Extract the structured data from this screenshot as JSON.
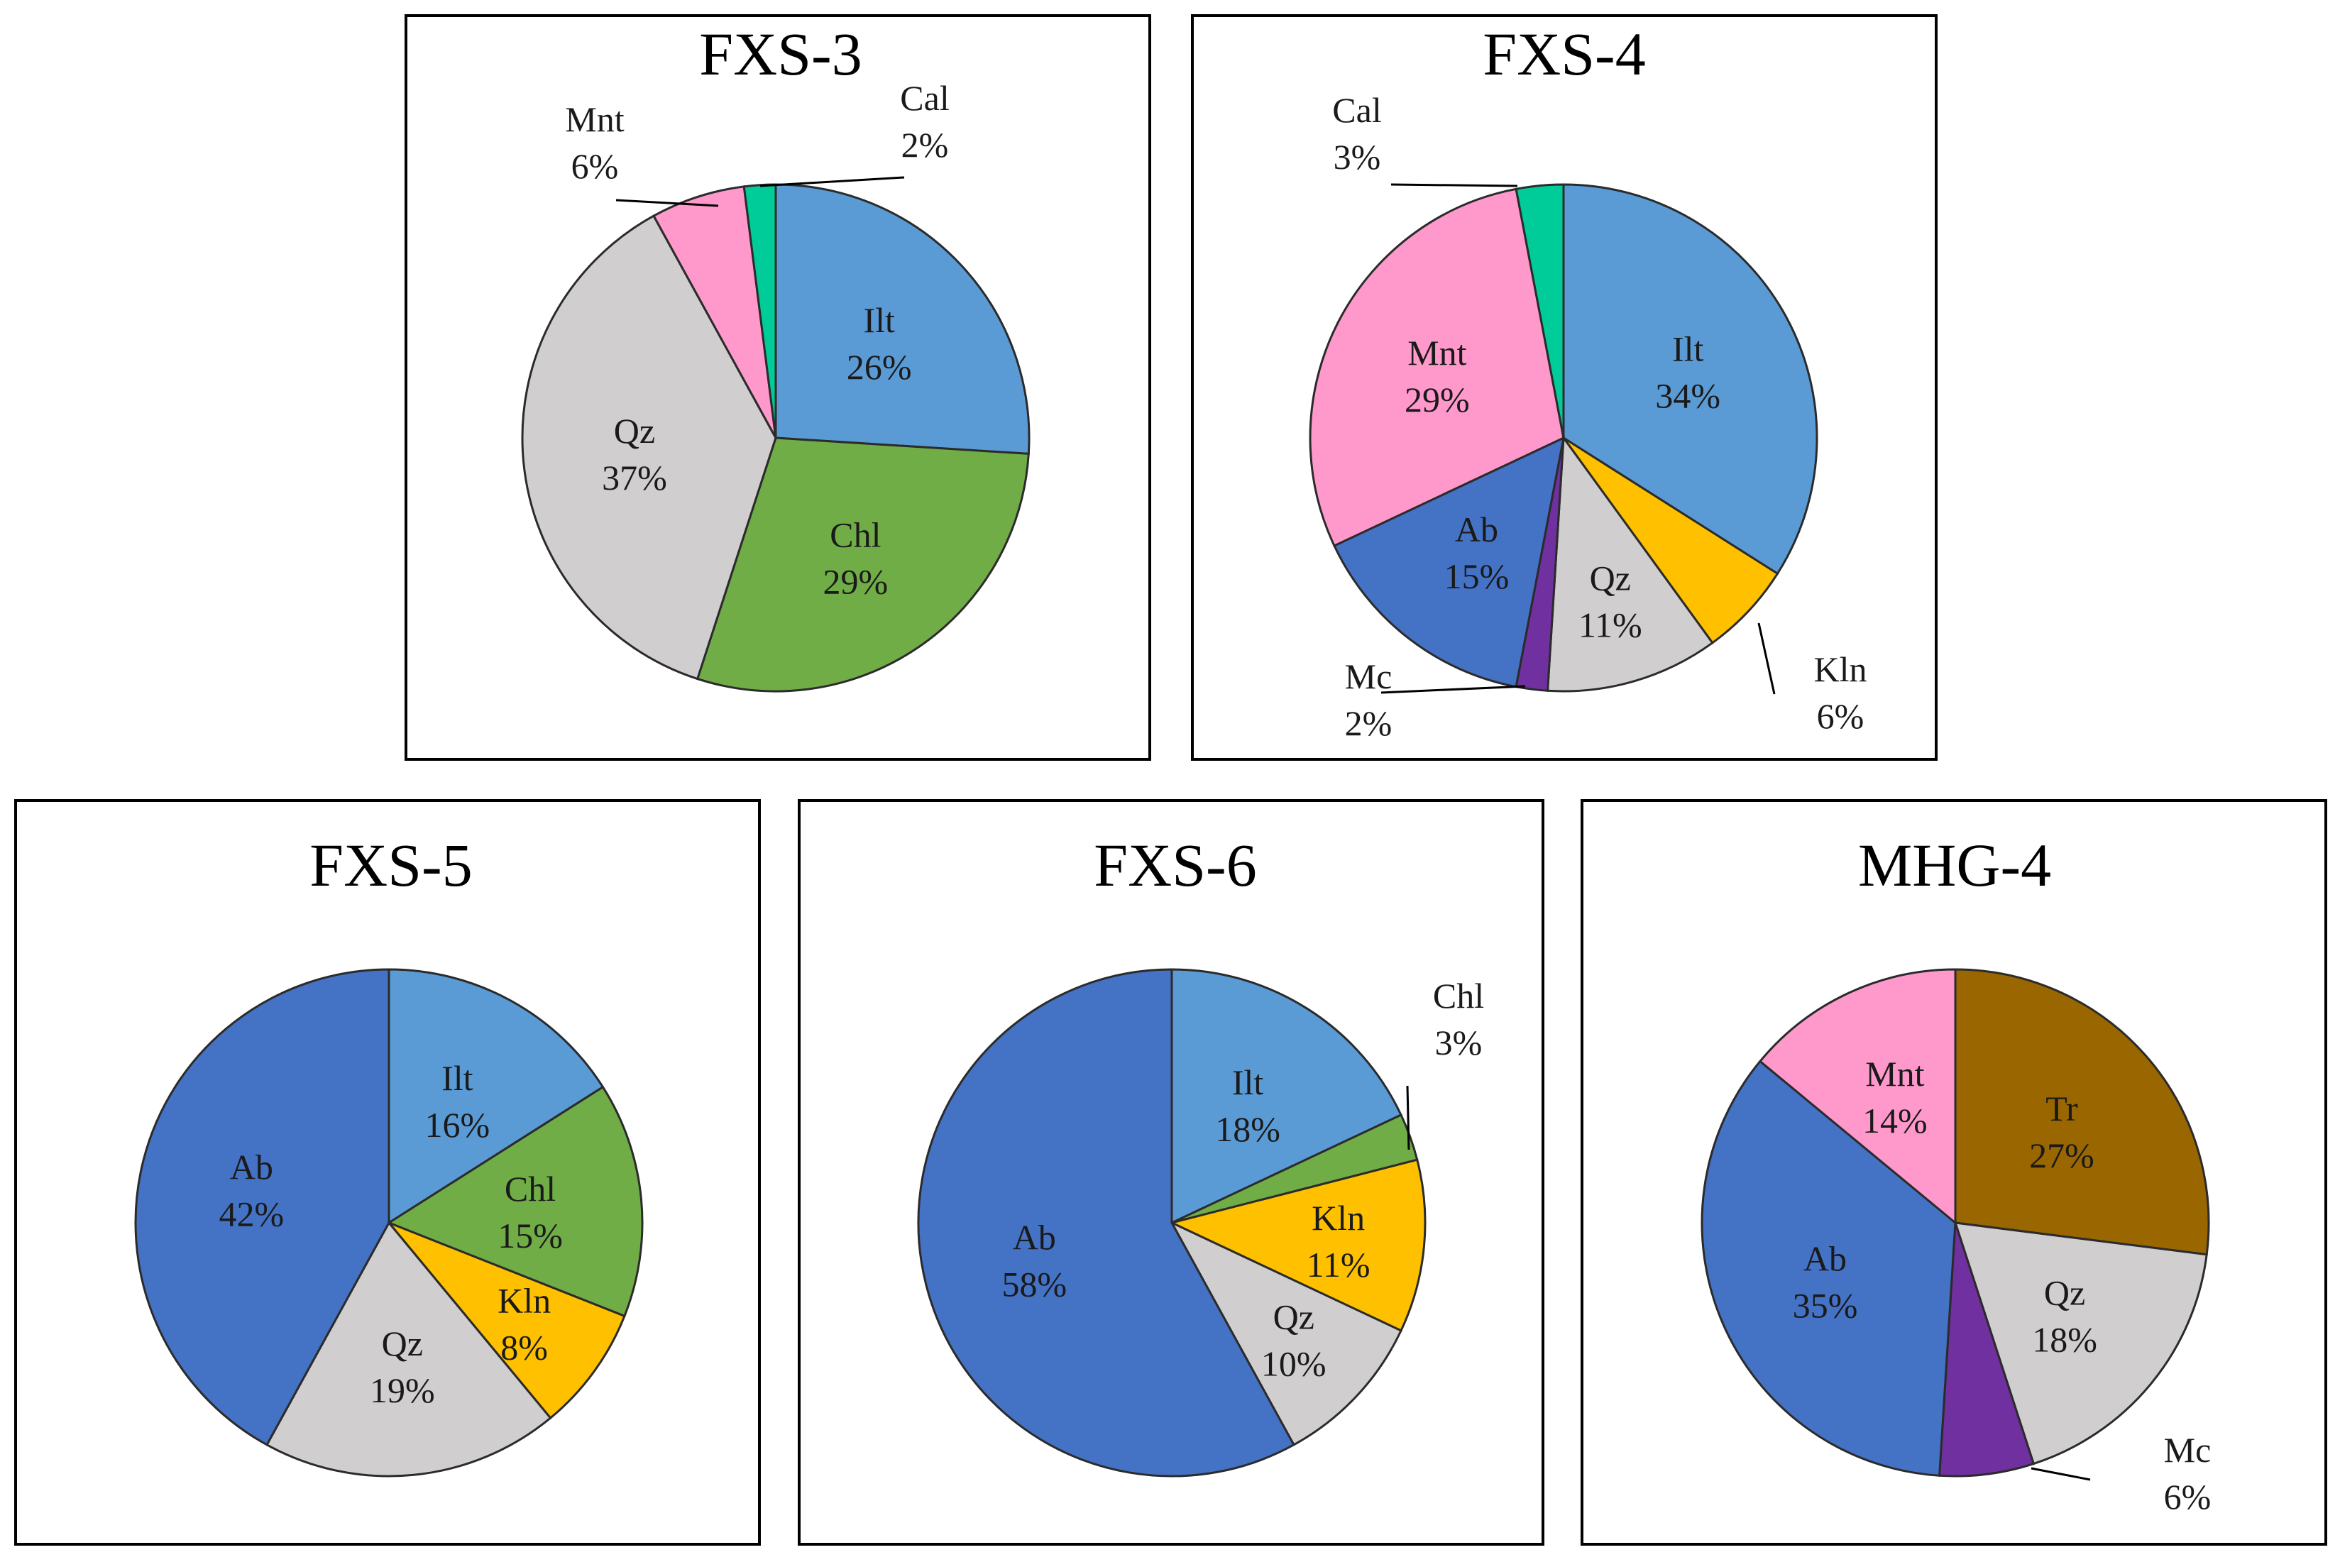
{
  "figure": {
    "panel_count": 5
  },
  "colors": {
    "Ilt": "#5b9bd5",
    "Chl": "#70ad47",
    "Qz": "#d0cece",
    "Mnt": "#ff99cc",
    "Cal": "#00cc99",
    "Kln": "#ffc000",
    "Mc": "#7030a0",
    "Ab": "#4472c4",
    "Tr": "#996600"
  },
  "chart_data": [
    {
      "type": "pie",
      "title": "FXS-3",
      "slices": [
        {
          "label": "Ilt",
          "value": 26,
          "display": "26%"
        },
        {
          "label": "Chl",
          "value": 29,
          "display": "29%"
        },
        {
          "label": "Qz",
          "value": 37,
          "display": "37%"
        },
        {
          "label": "Mnt",
          "value": 6,
          "display": "6%"
        },
        {
          "label": "Cal",
          "value": 2,
          "display": "2%"
        }
      ]
    },
    {
      "type": "pie",
      "title": "FXS-4",
      "slices": [
        {
          "label": "Ilt",
          "value": 34,
          "display": "34%"
        },
        {
          "label": "Kln",
          "value": 6,
          "display": "6%"
        },
        {
          "label": "Qz",
          "value": 11,
          "display": "11%"
        },
        {
          "label": "Mc",
          "value": 2,
          "display": "2%"
        },
        {
          "label": "Ab",
          "value": 15,
          "display": "15%"
        },
        {
          "label": "Mnt",
          "value": 29,
          "display": "29%"
        },
        {
          "label": "Cal",
          "value": 3,
          "display": "3%"
        }
      ]
    },
    {
      "type": "pie",
      "title": "FXS-5",
      "slices": [
        {
          "label": "Ilt",
          "value": 16,
          "display": "16%"
        },
        {
          "label": "Chl",
          "value": 15,
          "display": "15%"
        },
        {
          "label": "Kln",
          "value": 8,
          "display": "8%"
        },
        {
          "label": "Qz",
          "value": 19,
          "display": "19%"
        },
        {
          "label": "Ab",
          "value": 42,
          "display": "42%"
        }
      ]
    },
    {
      "type": "pie",
      "title": "FXS-6",
      "slices": [
        {
          "label": "Ilt",
          "value": 18,
          "display": "18%"
        },
        {
          "label": "Chl",
          "value": 3,
          "display": "3%"
        },
        {
          "label": "Kln",
          "value": 11,
          "display": "11%"
        },
        {
          "label": "Qz",
          "value": 10,
          "display": "10%"
        },
        {
          "label": "Ab",
          "value": 58,
          "display": "58%"
        }
      ]
    },
    {
      "type": "pie",
      "title": "MHG-4",
      "slices": [
        {
          "label": "Tr",
          "value": 27,
          "display": "27%"
        },
        {
          "label": "Qz",
          "value": 18,
          "display": "18%"
        },
        {
          "label": "Mc",
          "value": 6,
          "display": "6%"
        },
        {
          "label": "Ab",
          "value": 35,
          "display": "35%"
        },
        {
          "label": "Mnt",
          "value": 14,
          "display": "14%"
        }
      ]
    }
  ]
}
